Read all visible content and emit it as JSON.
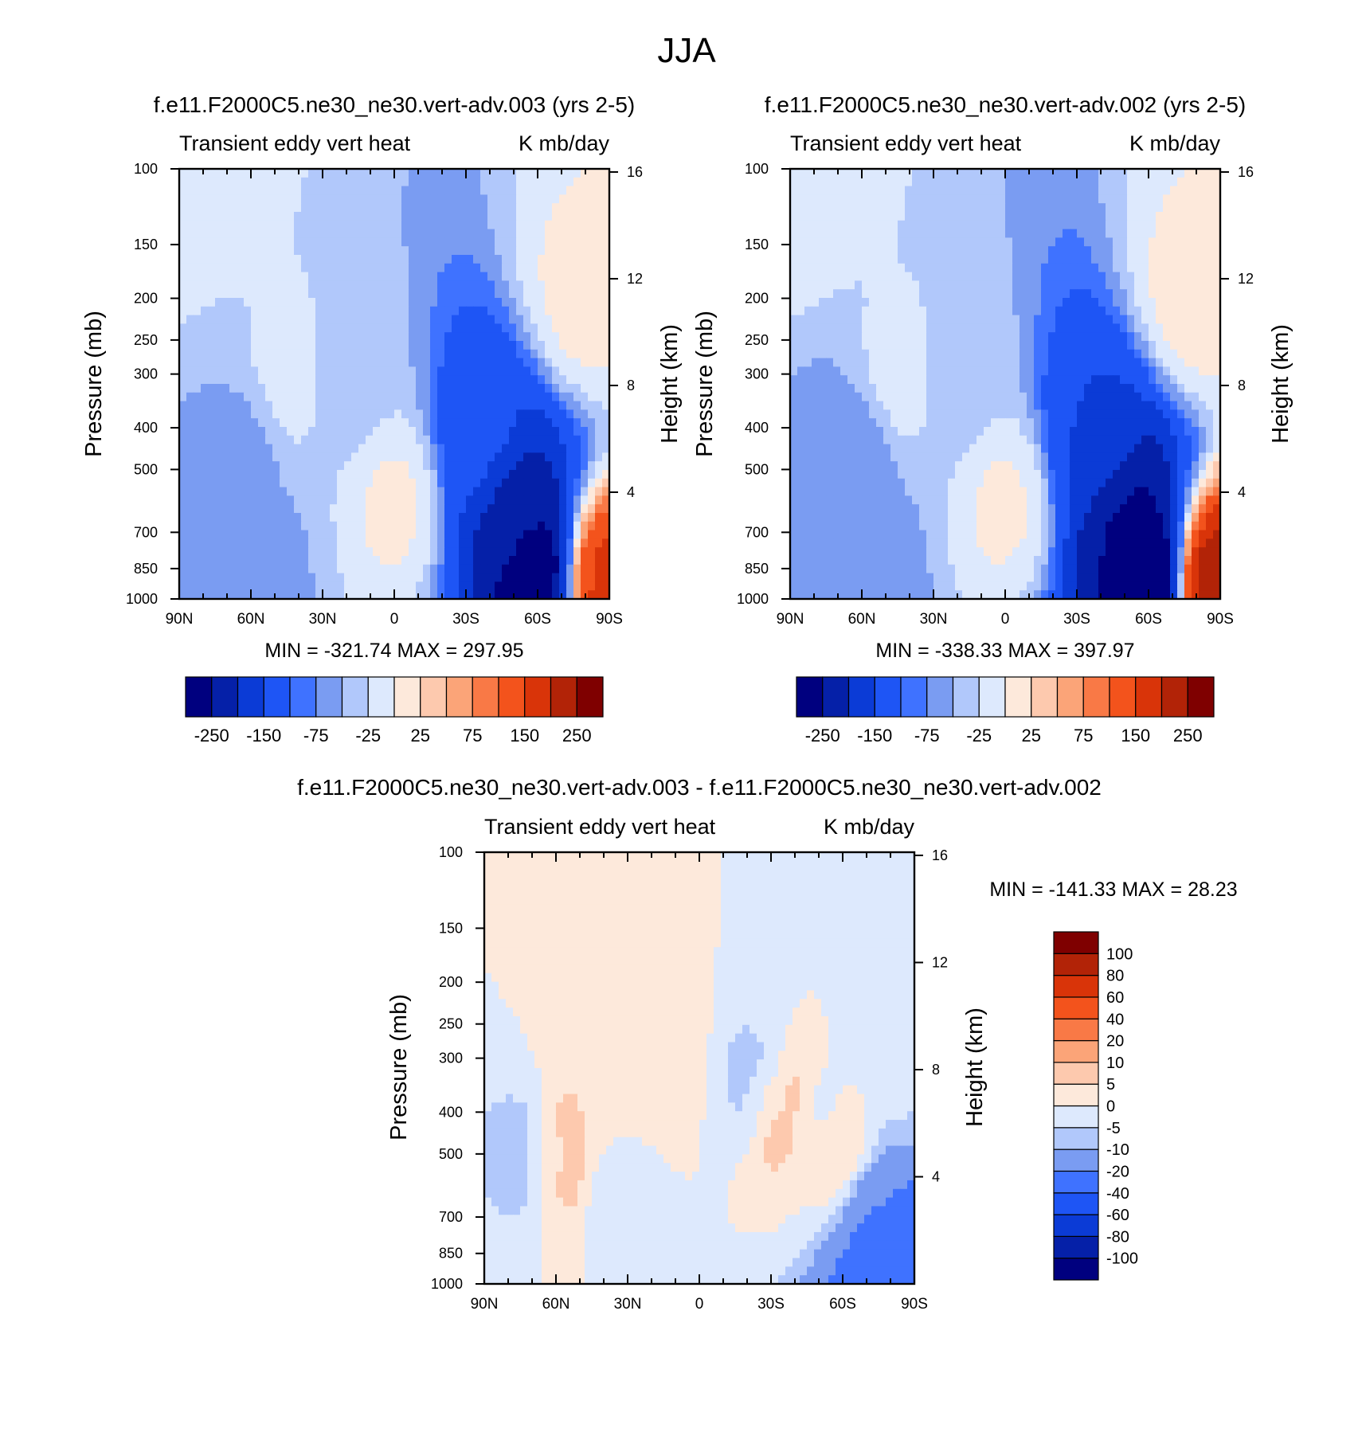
{
  "figure": {
    "title": "JJA"
  },
  "chart_data": [
    {
      "type": "heatmap",
      "id": "panel-test",
      "title": "f.e11.F2000C5.ne30_ne30.vert-adv.003 (yrs 2-5)",
      "left_label": "Transient eddy vert heat",
      "right_label": "K mb/day",
      "xlabel": "",
      "ylabel": "Pressure (mb)",
      "y2label": "Height (km)",
      "x_ticks": [
        "90N",
        "60N",
        "30N",
        "0",
        "30S",
        "60S",
        "90S"
      ],
      "x_range_deg": [
        90,
        -90
      ],
      "y_ticks": [
        100,
        150,
        200,
        250,
        300,
        400,
        500,
        700,
        850,
        1000
      ],
      "y_range_mb": [
        100,
        1000
      ],
      "y2_ticks": [
        16,
        12,
        8,
        4
      ],
      "stats": "MIN = -321.74  MAX = 297.95",
      "min": -321.74,
      "max": 297.95,
      "colorbar": {
        "orientation": "horizontal",
        "labels": [
          "-250",
          "-150",
          "-75",
          "-25",
          "25",
          "75",
          "150",
          "250"
        ],
        "levels": [
          -300,
          -250,
          -200,
          -150,
          -100,
          -75,
          -50,
          -25,
          0,
          25,
          50,
          75,
          100,
          150,
          200,
          250
        ],
        "colors": [
          "#00007f",
          "#0520a8",
          "#0b3bd6",
          "#1e55f5",
          "#3f72ff",
          "#7a9cf2",
          "#b1c8fb",
          "#dde9fd",
          "#fde9db",
          "#fdc9ae",
          "#fba478",
          "#f97946",
          "#f3531c",
          "#d93409",
          "#b22307",
          "#7f0000"
        ]
      },
      "features": [
        {
          "lat": 90,
          "lev": 100,
          "v": 0
        },
        {
          "lat": 62,
          "lev": 450,
          "v": -60
        },
        {
          "lat": 55,
          "lev": 800,
          "v": -55
        },
        {
          "lat": 45,
          "lev": 320,
          "v": -15
        },
        {
          "lat": 20,
          "lev": 330,
          "v": -35
        },
        {
          "lat": 0,
          "lev": 600,
          "v": 5
        },
        {
          "lat": -38,
          "lev": 450,
          "v": -130
        },
        {
          "lat": -50,
          "lev": 620,
          "v": -240
        },
        {
          "lat": -62,
          "lev": 900,
          "v": -300
        },
        {
          "lat": -85,
          "lev": 930,
          "v": 180
        },
        {
          "lat": -80,
          "lev": 200,
          "v": 8
        }
      ]
    },
    {
      "type": "heatmap",
      "id": "panel-control",
      "title": "f.e11.F2000C5.ne30_ne30.vert-adv.002 (yrs 2-5)",
      "left_label": "Transient eddy vert heat",
      "right_label": "K mb/day",
      "xlabel": "",
      "ylabel": "Pressure (mb)",
      "y2label": "Height (km)",
      "x_ticks": [
        "90N",
        "60N",
        "30N",
        "0",
        "30S",
        "60S",
        "90S"
      ],
      "x_range_deg": [
        90,
        -90
      ],
      "y_ticks": [
        100,
        150,
        200,
        250,
        300,
        400,
        500,
        700,
        850,
        1000
      ],
      "y_range_mb": [
        100,
        1000
      ],
      "y2_ticks": [
        16,
        12,
        8,
        4
      ],
      "stats": "MIN = -338.33  MAX = 397.97",
      "min": -338.33,
      "max": 397.97,
      "colorbar": {
        "orientation": "horizontal",
        "labels": [
          "-250",
          "-150",
          "-75",
          "-25",
          "25",
          "75",
          "150",
          "250"
        ],
        "levels": [
          -300,
          -250,
          -200,
          -150,
          -100,
          -75,
          -50,
          -25,
          0,
          25,
          50,
          75,
          100,
          150,
          200,
          250
        ],
        "colors": [
          "#00007f",
          "#0520a8",
          "#0b3bd6",
          "#1e55f5",
          "#3f72ff",
          "#7a9cf2",
          "#b1c8fb",
          "#dde9fd",
          "#fde9db",
          "#fdc9ae",
          "#fba478",
          "#f97946",
          "#f3531c",
          "#d93409",
          "#b22307",
          "#7f0000"
        ]
      },
      "features": [
        {
          "lat": 90,
          "lev": 100,
          "v": 0
        },
        {
          "lat": 62,
          "lev": 450,
          "v": -70
        },
        {
          "lat": 55,
          "lev": 800,
          "v": -60
        },
        {
          "lat": 45,
          "lev": 320,
          "v": -15
        },
        {
          "lat": 20,
          "lev": 330,
          "v": -35
        },
        {
          "lat": 0,
          "lev": 600,
          "v": 5
        },
        {
          "lat": -38,
          "lev": 450,
          "v": -150
        },
        {
          "lat": -50,
          "lev": 620,
          "v": -260
        },
        {
          "lat": -62,
          "lev": 900,
          "v": -320
        },
        {
          "lat": -85,
          "lev": 930,
          "v": 250
        },
        {
          "lat": -80,
          "lev": 200,
          "v": 10
        }
      ]
    },
    {
      "type": "heatmap",
      "id": "panel-diff",
      "title": "f.e11.F2000C5.ne30_ne30.vert-adv.003 - f.e11.F2000C5.ne30_ne30.vert-adv.002",
      "left_label": "Transient eddy vert heat",
      "right_label": "K mb/day",
      "xlabel": "",
      "ylabel": "Pressure (mb)",
      "y2label": "Height (km)",
      "x_ticks": [
        "90N",
        "60N",
        "30N",
        "0",
        "30S",
        "60S",
        "90S"
      ],
      "x_range_deg": [
        90,
        -90
      ],
      "y_ticks": [
        100,
        150,
        200,
        250,
        300,
        400,
        500,
        700,
        850,
        1000
      ],
      "y_range_mb": [
        100,
        1000
      ],
      "y2_ticks": [
        16,
        12,
        8,
        4
      ],
      "stats": "MIN = -141.33  MAX =  28.23",
      "min": -141.33,
      "max": 28.23,
      "colorbar": {
        "orientation": "vertical",
        "labels": [
          "100",
          "80",
          "60",
          "40",
          "20",
          "10",
          "5",
          "0",
          "-5",
          "-10",
          "-20",
          "-40",
          "-60",
          "-80",
          "-100"
        ],
        "levels": [
          -120,
          -100,
          -80,
          -60,
          -40,
          -20,
          -10,
          -5,
          0,
          5,
          10,
          20,
          40,
          60,
          80,
          100
        ],
        "colors": [
          "#00007f",
          "#0520a8",
          "#0b3bd6",
          "#1e55f5",
          "#3f72ff",
          "#7a9cf2",
          "#b1c8fb",
          "#dde9fd",
          "#fde9db",
          "#fdc9ae",
          "#fba478",
          "#f97946",
          "#f3531c",
          "#d93409",
          "#b22307",
          "#7f0000"
        ]
      },
      "features": [
        {
          "lat": 68,
          "lev": 500,
          "v": -12
        },
        {
          "lat": 60,
          "lev": 500,
          "v": 14
        },
        {
          "lat": 40,
          "lev": 350,
          "v": 4
        },
        {
          "lat": 35,
          "lev": 600,
          "v": -3
        },
        {
          "lat": 15,
          "lev": 300,
          "v": 3
        },
        {
          "lat": -25,
          "lev": 350,
          "v": -8
        },
        {
          "lat": -35,
          "lev": 400,
          "v": 12
        },
        {
          "lat": -50,
          "lev": 450,
          "v": -6
        },
        {
          "lat": -57,
          "lev": 500,
          "v": 9
        },
        {
          "lat": -72,
          "lev": 700,
          "v": -18
        },
        {
          "lat": -78,
          "lev": 920,
          "v": -40
        },
        {
          "lat": -85,
          "lev": 300,
          "v": -4
        }
      ]
    }
  ]
}
